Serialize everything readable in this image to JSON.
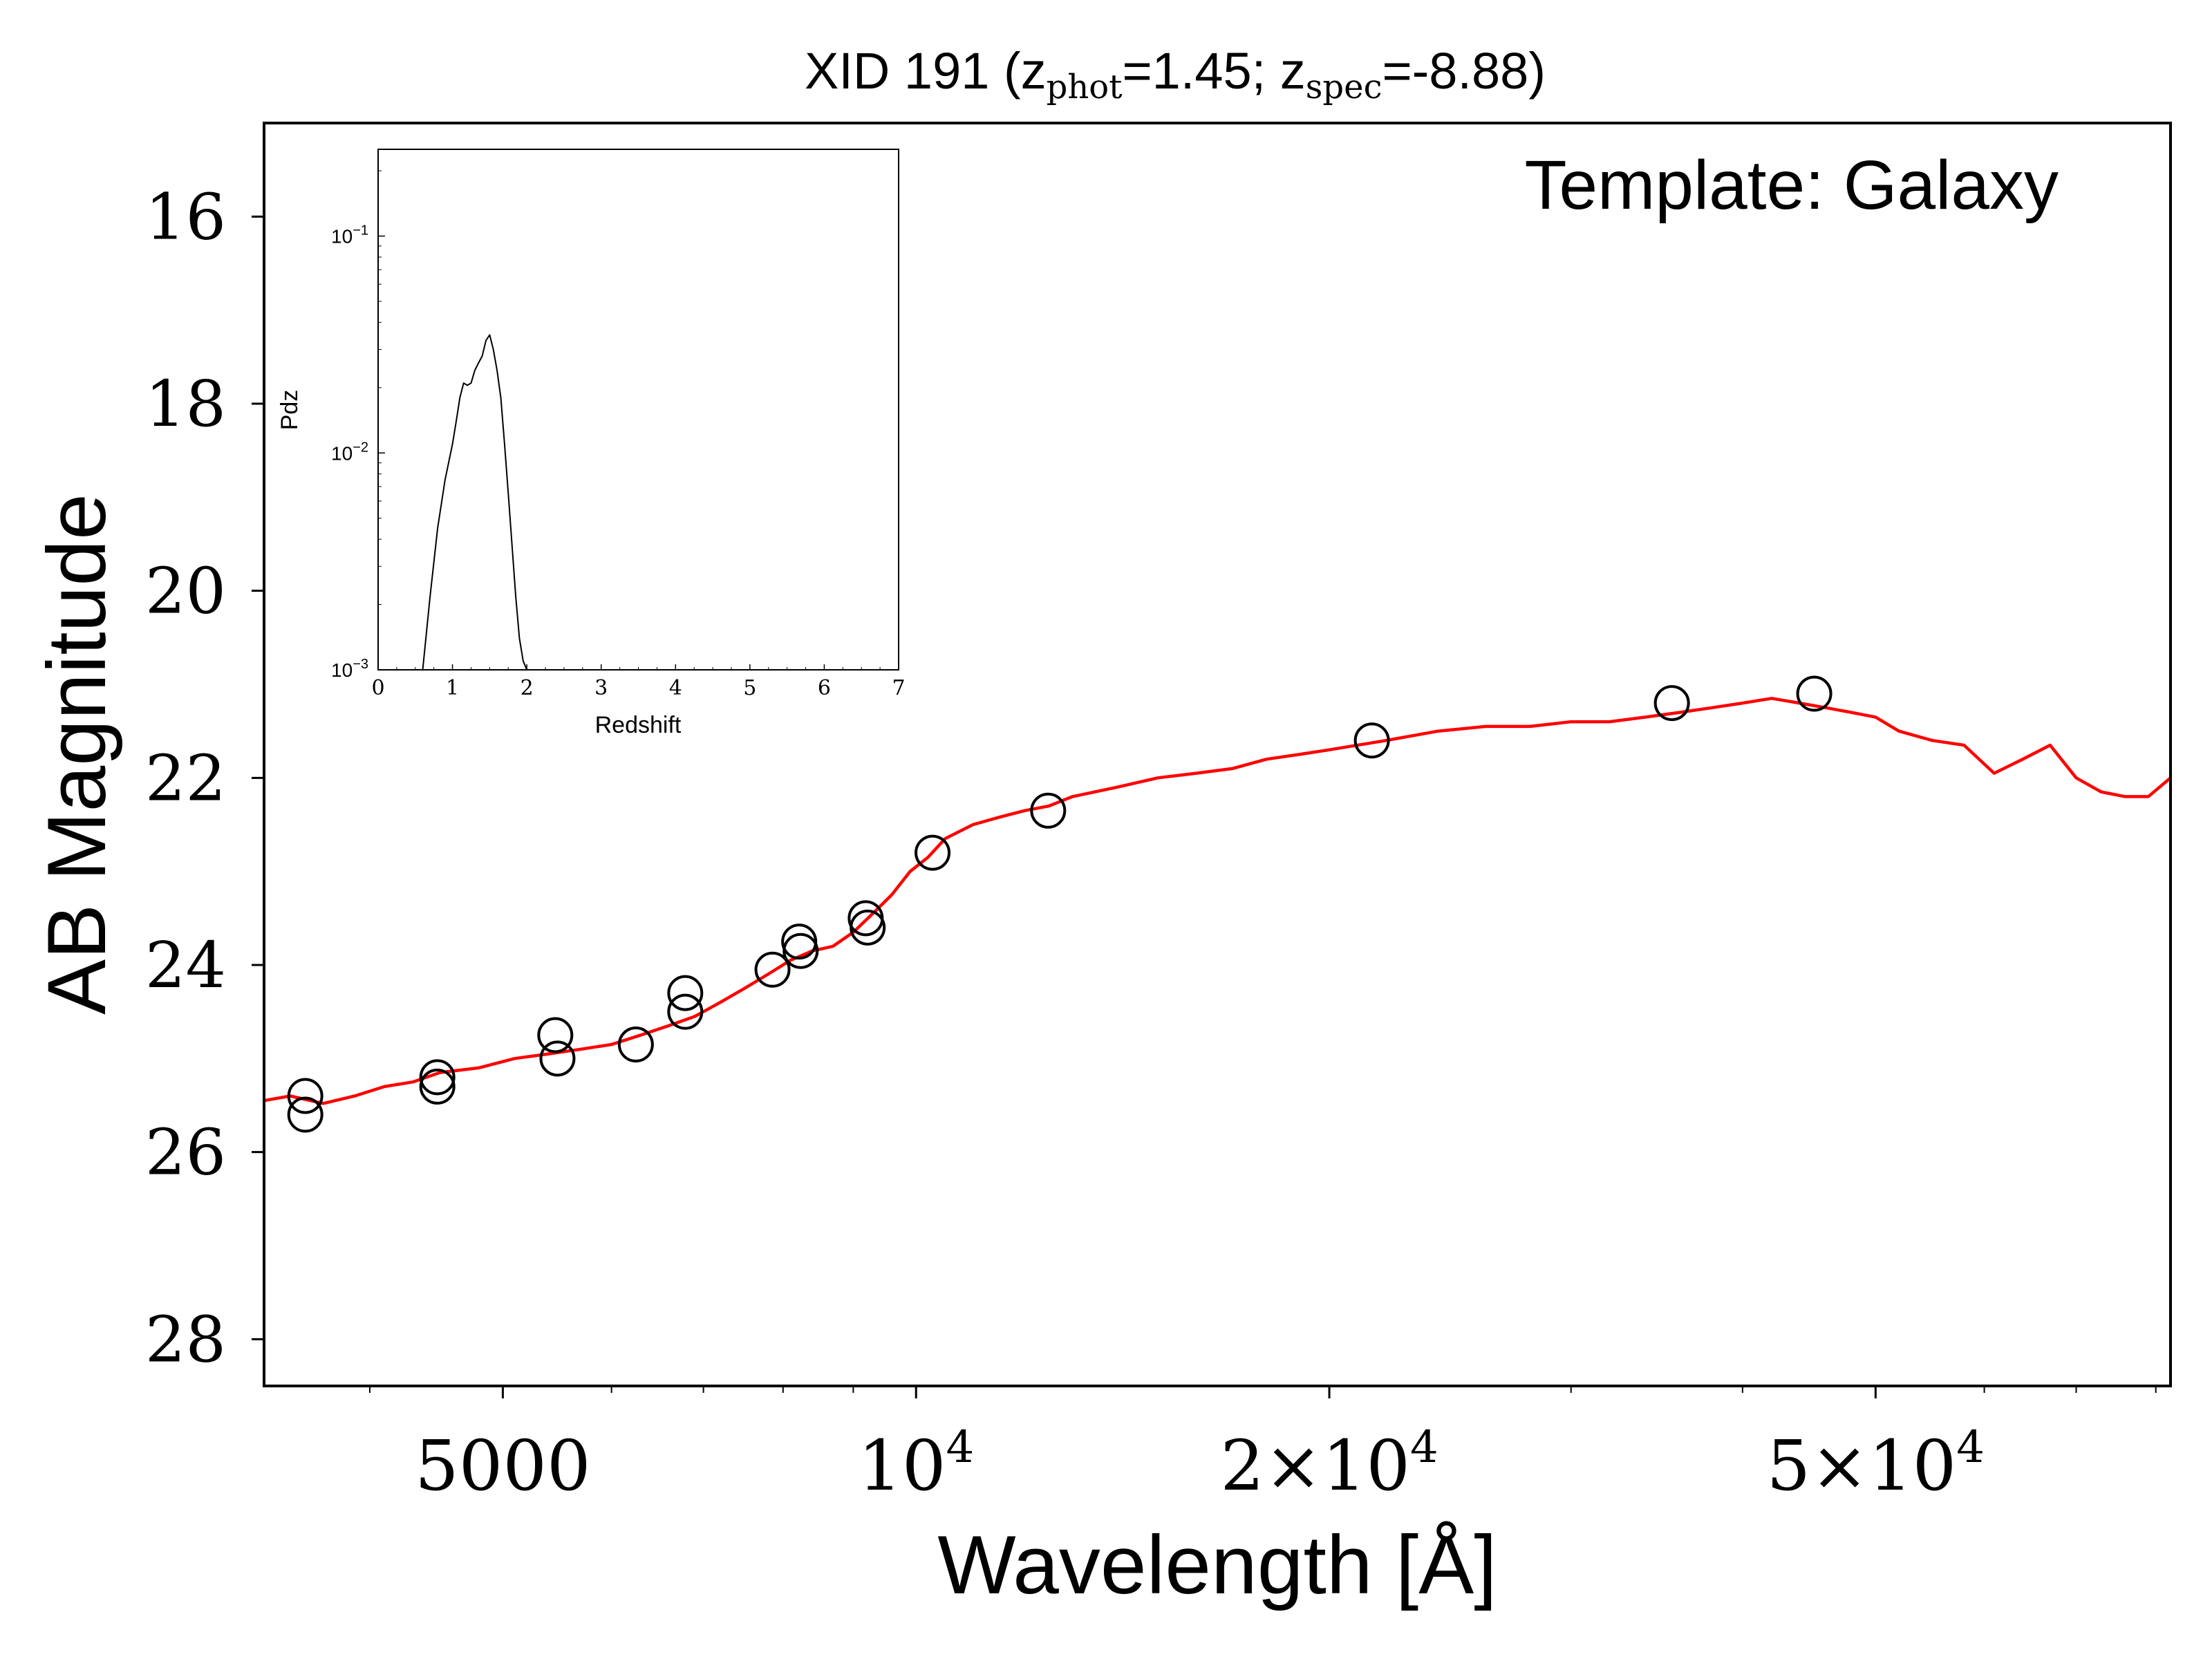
{
  "chart_data": [
    {
      "type": "scatter",
      "title_parts": {
        "prefix": "XID 191 (z",
        "phot_sub": "phot",
        "phot_value": "=1.45; z",
        "spec_sub": "spec",
        "spec_value": "=-8.88)"
      },
      "annotation": "Template: Galaxy",
      "xlabel": "Wavelength [Å]",
      "ylabel": "AB Magnitude",
      "xscale": "log",
      "xlim": [
        3350,
        82000
      ],
      "ylim": [
        28.5,
        15.0
      ],
      "y_inverted": true,
      "xticks": [
        {
          "value": 5000,
          "base": "5000",
          "exp": ""
        },
        {
          "value": 10000,
          "base": "10",
          "exp": "4"
        },
        {
          "value": 20000,
          "base": "2×10",
          "exp": "4"
        },
        {
          "value": 50000,
          "base": "5×10",
          "exp": "4"
        }
      ],
      "yticks": [
        {
          "value": 16,
          "label": "16"
        },
        {
          "value": 18,
          "label": "18"
        },
        {
          "value": 20,
          "label": "20"
        },
        {
          "value": 22,
          "label": "22"
        },
        {
          "value": 24,
          "label": "24"
        },
        {
          "value": 26,
          "label": "26"
        },
        {
          "value": 28,
          "label": "28"
        }
      ],
      "observed_photometry": {
        "marker": "open-circle",
        "color": "#000000",
        "x": [
          3590,
          3590,
          4480,
          4480,
          5460,
          5480,
          6250,
          6790,
          6790,
          7860,
          8220,
          8240,
          9190,
          9220,
          10280,
          12480,
          21480,
          35530,
          45110
        ],
        "y": [
          25.4,
          25.6,
          25.2,
          25.3,
          24.75,
          25.0,
          24.85,
          24.3,
          24.5,
          24.05,
          23.75,
          23.85,
          23.5,
          23.6,
          22.8,
          22.35,
          21.6,
          21.2,
          21.1
        ]
      },
      "template_fit": {
        "color": "#ff0000",
        "x": [
          3350,
          3500,
          3700,
          3900,
          4100,
          4300,
          4500,
          4800,
          5100,
          5400,
          5700,
          6000,
          6300,
          6600,
          6900,
          7200,
          7500,
          7800,
          8100,
          8400,
          8700,
          9000,
          9300,
          9600,
          9900,
          10200,
          10500,
          11000,
          11500,
          12000,
          12500,
          13000,
          14000,
          15000,
          16000,
          17000,
          18000,
          19000,
          20000,
          22000,
          24000,
          26000,
          28000,
          30000,
          32000,
          34000,
          36000,
          38000,
          40000,
          42000,
          44000,
          46000,
          48000,
          50000,
          52000,
          55000,
          58000,
          61000,
          64000,
          67000,
          70000,
          73000,
          76000,
          79000,
          82000
        ],
        "y": [
          25.45,
          25.4,
          25.48,
          25.4,
          25.3,
          25.25,
          25.15,
          25.1,
          25.0,
          24.95,
          24.9,
          24.85,
          24.75,
          24.65,
          24.55,
          24.4,
          24.25,
          24.1,
          23.95,
          23.85,
          23.8,
          23.65,
          23.45,
          23.25,
          23.0,
          22.85,
          22.65,
          22.5,
          22.42,
          22.35,
          22.3,
          22.2,
          22.1,
          22.0,
          21.95,
          21.9,
          21.8,
          21.75,
          21.7,
          21.6,
          21.5,
          21.45,
          21.45,
          21.4,
          21.4,
          21.35,
          21.3,
          21.25,
          21.2,
          21.15,
          21.2,
          21.25,
          21.3,
          21.35,
          21.5,
          21.6,
          21.65,
          21.95,
          21.8,
          21.65,
          22.0,
          22.15,
          22.2,
          22.2,
          22.0
        ]
      }
    },
    {
      "type": "line",
      "xlabel": "Redshift",
      "ylabel": "Pdz",
      "xlim": [
        0,
        7
      ],
      "ylim_log10": [
        -3,
        -0.6
      ],
      "yscale": "log",
      "xticks": [
        "0",
        "1",
        "2",
        "3",
        "4",
        "5",
        "6",
        "7"
      ],
      "yticks": [
        {
          "log": -1,
          "base": "10",
          "exp": "−1"
        },
        {
          "log": -2,
          "base": "10",
          "exp": "−2"
        },
        {
          "log": -3,
          "base": "10",
          "exp": "−3"
        }
      ],
      "series": [
        {
          "color": "#000000",
          "x": [
            0.6,
            0.7,
            0.8,
            0.9,
            1.0,
            1.05,
            1.1,
            1.15,
            1.2,
            1.25,
            1.3,
            1.35,
            1.4,
            1.45,
            1.5,
            1.55,
            1.6,
            1.65,
            1.7,
            1.75,
            1.8,
            1.85,
            1.9,
            1.95,
            2.0
          ],
          "y": [
            0.001,
            0.0022,
            0.0045,
            0.0075,
            0.011,
            0.014,
            0.018,
            0.021,
            0.0205,
            0.021,
            0.024,
            0.026,
            0.028,
            0.033,
            0.035,
            0.03,
            0.024,
            0.018,
            0.011,
            0.0065,
            0.0038,
            0.0022,
            0.0014,
            0.0011,
            0.001
          ]
        }
      ]
    }
  ]
}
